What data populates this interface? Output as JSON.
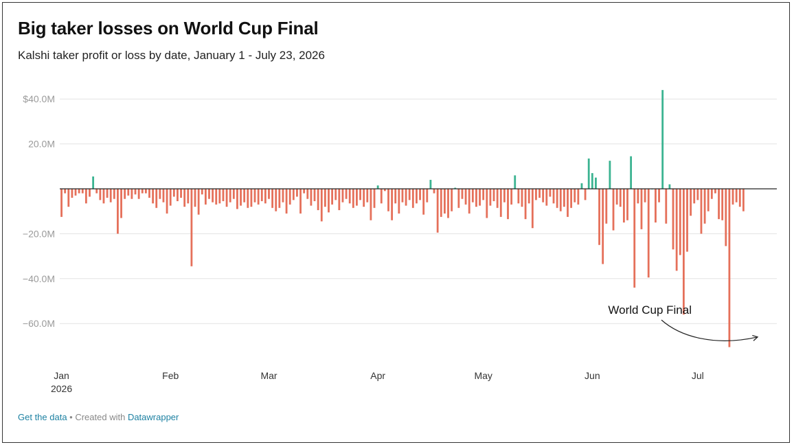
{
  "title": "Big taker losses on World Cup Final",
  "subtitle": "Kalshi taker profit or loss by date, January 1 - July 23, 2026",
  "footer": {
    "get_data": "Get the data",
    "separator": " • ",
    "created_with": "Created with ",
    "tool": "Datawrapper"
  },
  "colors": {
    "positive": "#3bb391",
    "negative": "#e5705a",
    "grid": "#e3e3e3",
    "axis": "#222222",
    "tick_text": "#9a9a9a"
  },
  "chart_data": {
    "type": "bar",
    "title": "Big taker losses on World Cup Final",
    "subtitle": "Kalshi taker profit or loss by date, January 1 - July 23, 2026",
    "unit": "USD millions",
    "ylim": [
      -72,
      45
    ],
    "grid": true,
    "y_ticks": [
      {
        "value": 40,
        "label": "$40.0M"
      },
      {
        "value": 20,
        "label": "20.0M"
      },
      {
        "value": -20,
        "label": "−20.0M"
      },
      {
        "value": -40,
        "label": "−40.0M"
      },
      {
        "value": -60,
        "label": "−60.0M"
      }
    ],
    "x_ticks": [
      {
        "date": "2026-01-01",
        "label": "Jan",
        "sublabel": "2026"
      },
      {
        "date": "2026-02-01",
        "label": "Feb"
      },
      {
        "date": "2026-03-01",
        "label": "Mar"
      },
      {
        "date": "2026-04-01",
        "label": "Apr"
      },
      {
        "date": "2026-05-01",
        "label": "May"
      },
      {
        "date": "2026-06-01",
        "label": "Jun"
      },
      {
        "date": "2026-07-01",
        "label": "Jul"
      }
    ],
    "x_start": "2026-01-01",
    "x_end": "2026-07-23",
    "annotation": {
      "text": "World Cup Final",
      "date": "2026-07-19",
      "value": -66
    },
    "values": [
      -12.5,
      -2,
      -8,
      -4,
      -3,
      -2,
      -2,
      -6.5,
      -3.5,
      5.5,
      -2,
      -5,
      -6.5,
      -4,
      -6,
      -4.5,
      -20,
      -13,
      -4.5,
      -3,
      -4.5,
      -2.5,
      -4.5,
      -2,
      -2,
      -4,
      -6.5,
      -8.5,
      -4.5,
      -6,
      -11,
      -7.5,
      -3.5,
      -5.5,
      -4,
      -8,
      -6.5,
      -34.5,
      -8,
      -11.5,
      -2.5,
      -7,
      -4.5,
      -6,
      -7,
      -6.5,
      -5.5,
      -8,
      -6,
      -4.5,
      -9,
      -7.5,
      -6,
      -8.5,
      -8,
      -6,
      -7,
      -5.5,
      -6.5,
      -4.5,
      -8.5,
      -10,
      -8.5,
      -6,
      -11,
      -7,
      -5,
      -3.5,
      -11,
      -2,
      -4.5,
      -7.5,
      -5.5,
      -9.5,
      -14.5,
      -8,
      -10.5,
      -7,
      -5,
      -9.5,
      -6,
      -4.5,
      -6.5,
      -8.5,
      -7.5,
      -5,
      -8,
      -6,
      -14,
      -8.5,
      1.5,
      -6.5,
      -1,
      -10,
      -14,
      -6.5,
      -11,
      -6,
      -7.5,
      -5,
      -8.5,
      -6.5,
      -5,
      -11.5,
      -6,
      4,
      -2,
      -19.5,
      -12.5,
      -11,
      -13,
      -10,
      0.5,
      -8.5,
      -4.5,
      -7,
      -11,
      -6,
      -8,
      -7.5,
      -5,
      -13,
      -7.5,
      -5.5,
      -8.5,
      -12.5,
      -6,
      -13.5,
      -7,
      6,
      -6.5,
      -8,
      -13.5,
      -6.5,
      -17.5,
      -5,
      -4,
      -6,
      -7.5,
      -3.5,
      -6.5,
      -8.5,
      -10,
      -8,
      -12.5,
      -8.5,
      -6,
      -7,
      2.5,
      -5,
      13.5,
      7,
      5,
      -25,
      -33.5,
      -15.5,
      12.5,
      -18.5,
      -7,
      -8,
      -15,
      -14,
      14.5,
      -44,
      -6.5,
      -18,
      -6,
      -39.5,
      0,
      -15,
      -6,
      44,
      -15.5,
      2,
      -27,
      -36.5,
      -29.5,
      -56,
      -28,
      -12,
      -6.5,
      -5,
      -20,
      -15.5,
      -10,
      -4.5,
      -2,
      -13.5,
      -14,
      -25.5,
      -70.5,
      -7,
      -6,
      -8,
      -10
    ]
  }
}
